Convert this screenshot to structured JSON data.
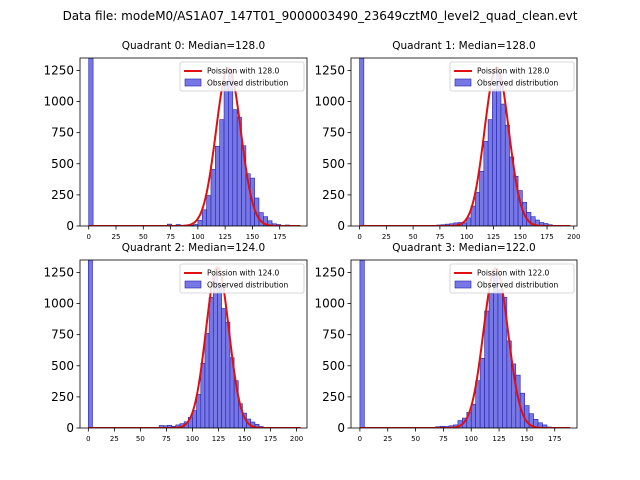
{
  "figure": {
    "suptitle": "Data file: modeM0/AS1A07_147T01_9000003490_23649cztM0_level2_quad_clean.evt"
  },
  "chart_data": [
    {
      "type": "bar",
      "title": "Quadrant 0: Median=128.0",
      "xlabel": "",
      "ylabel": "",
      "xlim": [
        -8,
        200
      ],
      "ylim": [
        0,
        1350
      ],
      "xticks": [
        0,
        25,
        50,
        75,
        100,
        125,
        150,
        175
      ],
      "yticks": [
        0,
        250,
        500,
        750,
        1000,
        1250
      ],
      "legend": [
        "Poission with 128.0",
        "Observed distribution"
      ],
      "legend_loc": "upper right",
      "bin_width": 4,
      "bins": [
        [
          0,
          1350
        ],
        [
          4,
          2
        ],
        [
          8,
          1
        ],
        [
          24,
          3
        ],
        [
          48,
          2
        ],
        [
          72,
          15
        ],
        [
          76,
          5
        ],
        [
          80,
          12
        ],
        [
          84,
          4
        ],
        [
          88,
          8
        ],
        [
          92,
          6
        ],
        [
          96,
          12
        ],
        [
          100,
          45
        ],
        [
          104,
          130
        ],
        [
          108,
          245
        ],
        [
          112,
          455
        ],
        [
          116,
          640
        ],
        [
          120,
          855
        ],
        [
          124,
          1160
        ],
        [
          128,
          1255
        ],
        [
          132,
          935
        ],
        [
          136,
          875
        ],
        [
          140,
          645
        ],
        [
          144,
          420
        ],
        [
          148,
          385
        ],
        [
          152,
          225
        ],
        [
          156,
          108
        ],
        [
          160,
          75
        ],
        [
          164,
          42
        ],
        [
          168,
          18
        ],
        [
          172,
          12
        ],
        [
          176,
          4
        ],
        [
          180,
          8
        ],
        [
          184,
          2
        ],
        [
          188,
          1
        ]
      ],
      "fit": {
        "mean": 128,
        "peak": 1270,
        "sigma": 11.3
      }
    },
    {
      "type": "bar",
      "title": "Quadrant 1: Median=128.0",
      "xlabel": "",
      "ylabel": "",
      "xlim": [
        -8,
        203
      ],
      "ylim": [
        0,
        1350
      ],
      "xticks": [
        0,
        25,
        50,
        75,
        100,
        125,
        150,
        175,
        200
      ],
      "yticks": [
        0,
        250,
        500,
        750,
        1000,
        1250
      ],
      "legend": [
        "Poission with 128.0",
        "Observed distribution"
      ],
      "legend_loc": "upper right",
      "bin_width": 4,
      "bins": [
        [
          0,
          1350
        ],
        [
          4,
          2
        ],
        [
          48,
          2
        ],
        [
          72,
          8
        ],
        [
          76,
          10
        ],
        [
          80,
          15
        ],
        [
          84,
          18
        ],
        [
          88,
          25
        ],
        [
          92,
          28
        ],
        [
          96,
          25
        ],
        [
          100,
          65
        ],
        [
          104,
          160
        ],
        [
          108,
          270
        ],
        [
          112,
          440
        ],
        [
          116,
          680
        ],
        [
          120,
          855
        ],
        [
          124,
          1100
        ],
        [
          128,
          1240
        ],
        [
          132,
          980
        ],
        [
          136,
          810
        ],
        [
          140,
          555
        ],
        [
          144,
          400
        ],
        [
          148,
          285
        ],
        [
          152,
          190
        ],
        [
          156,
          110
        ],
        [
          160,
          75
        ],
        [
          164,
          48
        ],
        [
          168,
          28
        ],
        [
          172,
          20
        ],
        [
          176,
          10
        ],
        [
          180,
          4
        ],
        [
          184,
          3
        ],
        [
          188,
          2
        ]
      ],
      "fit": {
        "mean": 128,
        "peak": 1275,
        "sigma": 11.3
      }
    },
    {
      "type": "bar",
      "title": "Quadrant 2: Median=124.0",
      "xlabel": "",
      "ylabel": "",
      "xlim": [
        -8,
        210
      ],
      "ylim": [
        0,
        1350
      ],
      "xticks": [
        0,
        25,
        50,
        75,
        100,
        125,
        150,
        175,
        200
      ],
      "yticks": [
        0,
        250,
        500,
        750,
        1000,
        1250
      ],
      "legend": [
        "Poission with 124.0",
        "Observed distribution"
      ],
      "legend_loc": "upper right",
      "bin_width": 4,
      "bins": [
        [
          0,
          1350
        ],
        [
          4,
          2
        ],
        [
          24,
          3
        ],
        [
          52,
          4
        ],
        [
          68,
          20
        ],
        [
          72,
          18
        ],
        [
          76,
          22
        ],
        [
          80,
          14
        ],
        [
          84,
          25
        ],
        [
          88,
          35
        ],
        [
          92,
          50
        ],
        [
          96,
          85
        ],
        [
          100,
          140
        ],
        [
          104,
          270
        ],
        [
          108,
          520
        ],
        [
          112,
          760
        ],
        [
          116,
          1050
        ],
        [
          120,
          1230
        ],
        [
          124,
          1160
        ],
        [
          128,
          960
        ],
        [
          132,
          850
        ],
        [
          136,
          565
        ],
        [
          140,
          380
        ],
        [
          144,
          195
        ],
        [
          148,
          120
        ],
        [
          152,
          72
        ],
        [
          156,
          48
        ],
        [
          160,
          30
        ],
        [
          164,
          12
        ],
        [
          168,
          5
        ],
        [
          172,
          3
        ],
        [
          176,
          2
        ]
      ],
      "fit": {
        "mean": 124,
        "peak": 1290,
        "sigma": 11.1
      }
    },
    {
      "type": "bar",
      "title": "Quadrant 3: Median=122.0",
      "xlabel": "",
      "ylabel": "",
      "xlim": [
        -8,
        195
      ],
      "ylim": [
        0,
        1350
      ],
      "xticks": [
        0,
        25,
        50,
        75,
        100,
        125,
        150,
        175
      ],
      "yticks": [
        0,
        250,
        500,
        750,
        1000,
        1250
      ],
      "legend": [
        "Poission with 122.0",
        "Observed distribution"
      ],
      "legend_loc": "upper right",
      "bin_width": 4,
      "bins": [
        [
          0,
          1350
        ],
        [
          4,
          2
        ],
        [
          24,
          2
        ],
        [
          48,
          3
        ],
        [
          56,
          4
        ],
        [
          68,
          10
        ],
        [
          72,
          14
        ],
        [
          76,
          12
        ],
        [
          80,
          18
        ],
        [
          84,
          25
        ],
        [
          88,
          60
        ],
        [
          92,
          80
        ],
        [
          96,
          125
        ],
        [
          100,
          190
        ],
        [
          104,
          380
        ],
        [
          108,
          560
        ],
        [
          112,
          940
        ],
        [
          116,
          1080
        ],
        [
          120,
          1240
        ],
        [
          124,
          1110
        ],
        [
          128,
          1050
        ],
        [
          132,
          700
        ],
        [
          136,
          515
        ],
        [
          140,
          425
        ],
        [
          144,
          280
        ],
        [
          148,
          180
        ],
        [
          152,
          115
        ],
        [
          156,
          70
        ],
        [
          160,
          42
        ],
        [
          164,
          25
        ],
        [
          168,
          8
        ],
        [
          172,
          4
        ],
        [
          176,
          2
        ]
      ],
      "fit": {
        "mean": 122,
        "peak": 1285,
        "sigma": 11.0
      }
    }
  ]
}
